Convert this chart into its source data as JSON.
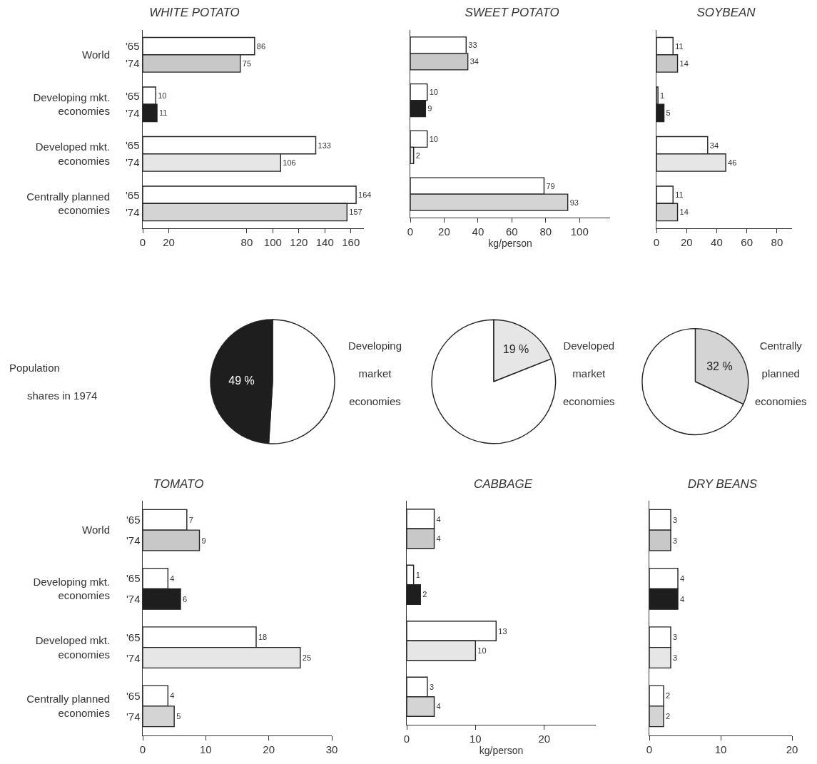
{
  "chart_data": [
    {
      "type": "bar",
      "orientation": "horizontal",
      "title": "WHITE POTATO",
      "categories": [
        "World",
        "Developing mkt. economies",
        "Developed mkt. economies",
        "Centrally planned economies"
      ],
      "series": [
        {
          "name": "'65",
          "color": "#ffffff",
          "values": [
            86,
            10,
            133,
            164
          ]
        },
        {
          "name": "'74",
          "colors": [
            "#c8c8c8",
            "#1e1e1e",
            "#e6e6e6",
            "#d4d4d4"
          ],
          "values": [
            75,
            11,
            106,
            157
          ]
        }
      ],
      "xlim": [
        0,
        170
      ],
      "xticks": [
        0,
        20,
        80,
        100,
        120,
        140,
        160
      ],
      "data_labels": true,
      "legend": false
    },
    {
      "type": "bar",
      "orientation": "horizontal",
      "title": "SWEET POTATO",
      "xlabel": "kg/person",
      "categories": [
        null,
        null,
        null,
        null
      ],
      "series": [
        {
          "color": "#ffffff",
          "values": [
            33,
            10,
            10,
            79
          ]
        },
        {
          "colors": [
            "#c8c8c8",
            "#1e1e1e",
            "#e6e6e6",
            "#d4d4d4"
          ],
          "values": [
            34,
            9,
            2,
            93
          ]
        }
      ],
      "xlim": [
        0,
        118
      ],
      "xticks": [
        0,
        20,
        40,
        60,
        80,
        100
      ],
      "data_labels": true,
      "legend": false,
      "tick_labels": "x"
    },
    {
      "type": "bar",
      "orientation": "horizontal",
      "title": "SOYBEAN",
      "categories": [
        null,
        null,
        null,
        null
      ],
      "series": [
        {
          "color": "#ffffff",
          "values": [
            11,
            1,
            34,
            11
          ]
        },
        {
          "colors": [
            "#c8c8c8",
            "#1e1e1e",
            "#e6e6e6",
            "#d4d4d4"
          ],
          "values": [
            14,
            5,
            46,
            14
          ]
        }
      ],
      "xlim": [
        0,
        90
      ],
      "xticks": [
        0,
        20,
        40,
        60,
        80
      ],
      "data_labels": true,
      "legend": false,
      "tick_labels": "x"
    },
    {
      "type": "pie",
      "title": "Developing market economies",
      "categories": [
        null,
        null
      ],
      "values": [
        51,
        49
      ],
      "colors": [
        "#ffffff",
        "#1e1e1e"
      ],
      "value_labels": [
        null,
        "49 %"
      ],
      "annotations": [
        "Population shares in 1974"
      ],
      "legend": false
    },
    {
      "type": "pie",
      "title": "Developed market economies",
      "categories": [
        null,
        null
      ],
      "values": [
        19,
        81
      ],
      "colors": [
        "#e6e6e6",
        "#ffffff"
      ],
      "value_labels": [
        "19 %",
        null
      ],
      "legend": false
    },
    {
      "type": "pie",
      "title": "Centrally planned economies",
      "categories": [
        null,
        null
      ],
      "values": [
        32,
        68
      ],
      "colors": [
        "#d4d4d4",
        "#ffffff"
      ],
      "value_labels": [
        "32 %",
        null
      ],
      "legend": false
    },
    {
      "type": "bar",
      "orientation": "horizontal",
      "title": "TOMATO",
      "categories": [
        "World",
        "Developing mkt. economies",
        "Developed mkt. economies",
        "Centrally planned economies"
      ],
      "series": [
        {
          "name": "'65",
          "color": "#ffffff",
          "values": [
            7,
            4,
            18,
            4
          ]
        },
        {
          "name": "'74",
          "colors": [
            "#c8c8c8",
            "#1e1e1e",
            "#e6e6e6",
            "#d4d4d4"
          ],
          "values": [
            9,
            6,
            25,
            5
          ]
        }
      ],
      "xlim": [
        0,
        30
      ],
      "xticks": [
        0,
        10,
        20,
        30
      ],
      "data_labels": true,
      "legend": false
    },
    {
      "type": "bar",
      "orientation": "horizontal",
      "title": "CABBAGE",
      "xlabel": "kg/person",
      "categories": [
        null,
        null,
        null,
        null
      ],
      "series": [
        {
          "color": "#ffffff",
          "values": [
            4,
            1,
            13,
            3
          ]
        },
        {
          "colors": [
            "#c8c8c8",
            "#1e1e1e",
            "#e6e6e6",
            "#d4d4d4"
          ],
          "values": [
            4,
            2,
            10,
            4
          ]
        }
      ],
      "xlim": [
        0,
        27.5
      ],
      "xticks": [
        0,
        10,
        20
      ],
      "data_labels": true,
      "legend": false,
      "tick_labels": "x"
    },
    {
      "type": "bar",
      "orientation": "horizontal",
      "title": "DRY BEANS",
      "categories": [
        null,
        null,
        null,
        null
      ],
      "series": [
        {
          "color": "#ffffff",
          "values": [
            3,
            4,
            3,
            2
          ]
        },
        {
          "colors": [
            "#c8c8c8",
            "#1e1e1e",
            "#e6e6e6",
            "#d4d4d4"
          ],
          "values": [
            3,
            4,
            3,
            2
          ]
        }
      ],
      "xlim": [
        0,
        20
      ],
      "xticks": [
        0,
        10,
        20
      ],
      "data_labels": true,
      "legend": false,
      "tick_labels": "x"
    }
  ]
}
